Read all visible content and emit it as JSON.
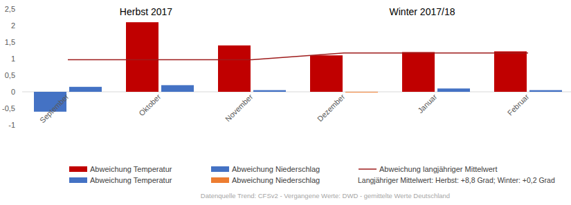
{
  "chart_data": {
    "type": "bar",
    "period_labels": [
      "Herbst 2017",
      "Winter 2017/18"
    ],
    "categories": [
      "September",
      "Oktober",
      "November",
      "Dezember",
      "Januar",
      "Februar"
    ],
    "series": [
      {
        "name": "Abweichung Temperatur",
        "type": "bar",
        "color": "#c00000",
        "colors": [
          "#4472c4",
          "#c00000",
          "#c00000",
          "#c00000",
          "#c00000",
          "#c00000"
        ],
        "values": [
          -0.6,
          2.1,
          1.4,
          1.1,
          1.2,
          1.22
        ]
      },
      {
        "name": "Abweichung Niederschlag",
        "type": "bar",
        "color": "#4472c4",
        "colors": [
          "#4472c4",
          "#4472c4",
          "#4472c4",
          "#ed7d31",
          "#4472c4",
          "#4472c4"
        ],
        "values": [
          0.15,
          0.2,
          0.05,
          -0.02,
          0.1,
          0.05
        ]
      },
      {
        "name": "Abweichung langjähriger Mittelwert",
        "type": "line",
        "color": "#9e1b1b",
        "values": [
          0.97,
          0.97,
          0.97,
          1.17,
          1.17,
          1.17
        ]
      }
    ],
    "legend_extra": [
      {
        "name": "Abweichung Temperatur",
        "color": "#4472c4"
      },
      {
        "name": "Abweichung Niederschlag",
        "color": "#ed7d31"
      }
    ],
    "note": "Langjähriger Mittelwert: Herbst: +8,8 Grad; Winter: +0,2 Grad",
    "source": "Datenquelle Trend: CFSv2 - Vergangene Werte: DWD - gemittelte Werte Deutschland",
    "ylim": [
      -1,
      2.5
    ],
    "yticks": [
      -1,
      {
        "value": -0.5,
        "label": "-0,5"
      },
      0,
      {
        "value": 0.5,
        "label": "0,5"
      },
      1,
      {
        "value": 1.5,
        "label": "1,5"
      },
      2,
      {
        "value": 2.5,
        "label": "2,5"
      }
    ],
    "grid": false,
    "legend": "bottom"
  }
}
